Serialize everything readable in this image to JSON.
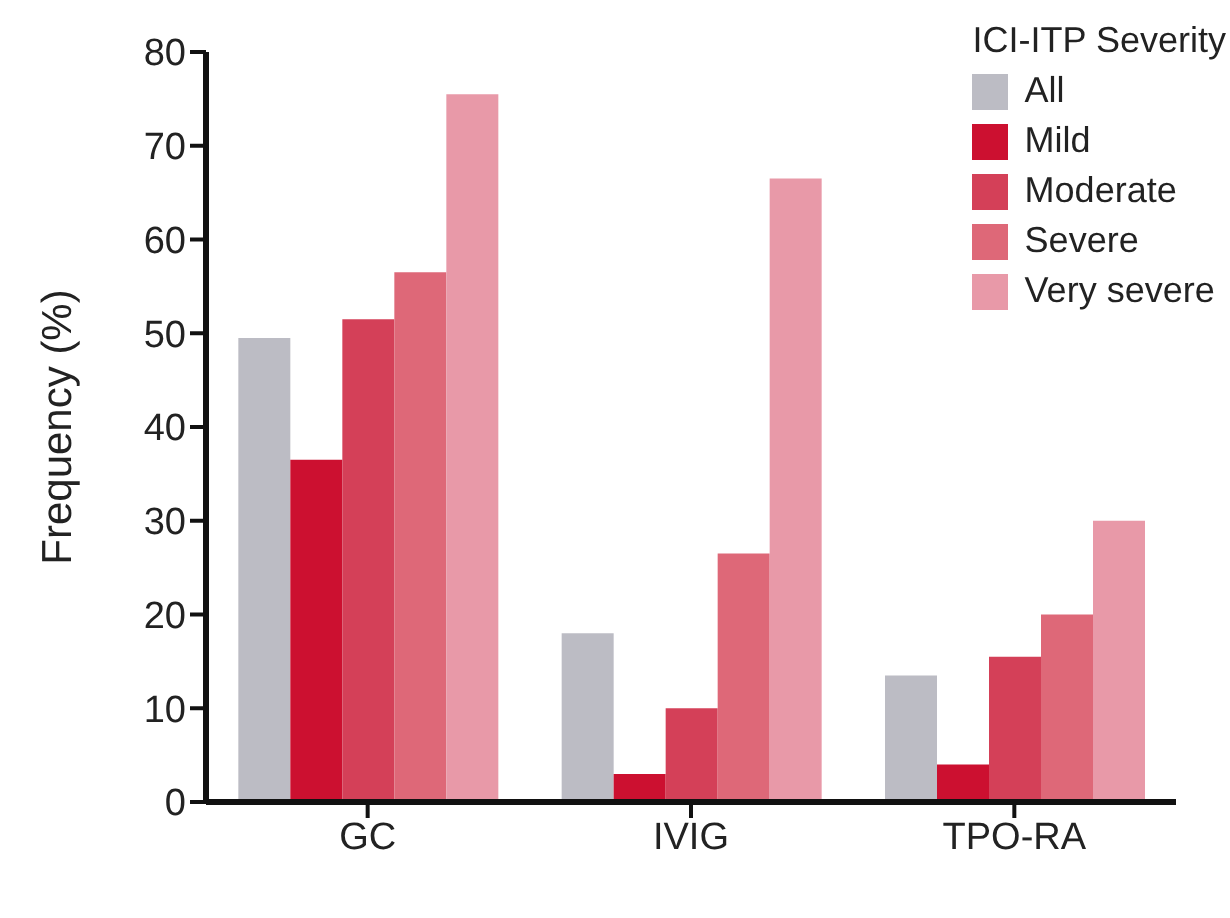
{
  "chart_data": {
    "type": "bar",
    "ylabel": "Frequency (%)",
    "legend_title": "ICI-ITP Severity",
    "categories": [
      "GC",
      "IVIG",
      "TPO-RA"
    ],
    "series": [
      {
        "name": "All",
        "color": "#bcbcc4",
        "values": [
          49.5,
          18,
          13.5
        ]
      },
      {
        "name": "Mild",
        "color": "#cc1030",
        "values": [
          36.5,
          3,
          4
        ]
      },
      {
        "name": "Moderate",
        "color": "#d44058",
        "values": [
          51.5,
          10,
          15.5
        ]
      },
      {
        "name": "Severe",
        "color": "#de6878",
        "values": [
          56.5,
          26.5,
          20
        ]
      },
      {
        "name": "Very severe",
        "color": "#e899a8",
        "values": [
          75.5,
          66.5,
          30
        ]
      }
    ],
    "ylim": [
      0,
      80
    ],
    "yticks": [
      0,
      10,
      20,
      30,
      40,
      50,
      60,
      70,
      80
    ],
    "grid": false,
    "legend": "top right"
  }
}
